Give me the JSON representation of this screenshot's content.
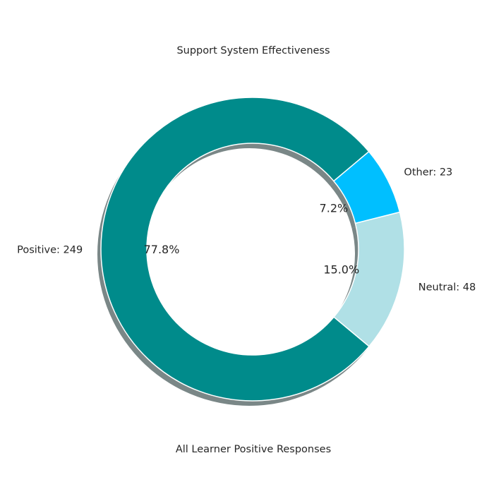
{
  "chart_data": {
    "type": "pie",
    "variant": "donut",
    "title": "Support System Effectiveness",
    "xlabel": "All Learner Positive Responses",
    "categories": [
      "Positive: 249",
      "Neutral: 48",
      "Other: 23"
    ],
    "values": [
      249,
      48,
      23
    ],
    "percent_labels": [
      "77.8%",
      "15.0%",
      "7.2%"
    ],
    "colors": [
      "#008b8b",
      "#b0e0e6",
      "#00bfff"
    ],
    "shadow": true,
    "start_angle_deg": 40,
    "direction": "counterclockwise"
  }
}
